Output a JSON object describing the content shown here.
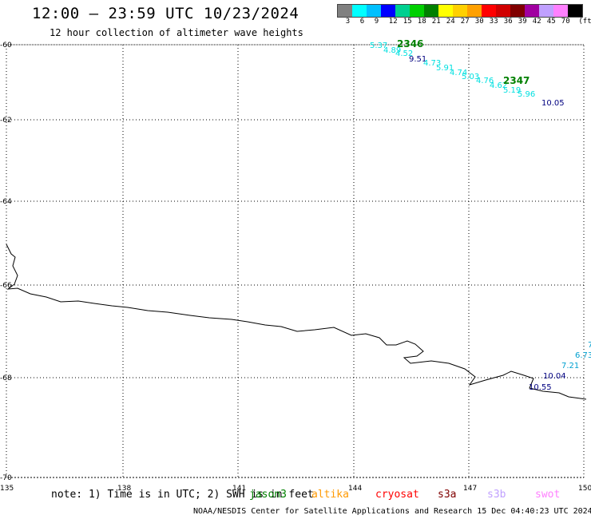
{
  "header": {
    "title": "12:00 – 23:59 UTC 10/23/2024",
    "subtitle": "12 hour collection of altimeter wave heights"
  },
  "legend": {
    "swatches": [
      "#808080",
      "#00ffff",
      "#00c0ff",
      "#0000ff",
      "#00d090",
      "#00d000",
      "#008000",
      "#ffff00",
      "#ffd000",
      "#ffa000",
      "#ff0000",
      "#d00000",
      "#800000",
      "#a000a0",
      "#c0a0ff",
      "#ff80ff",
      "#000000"
    ],
    "labels": [
      "3",
      "6",
      "9",
      "12",
      "15",
      "18",
      "21",
      "24",
      "27",
      "30",
      "33",
      "36",
      "39",
      "42",
      "45",
      "70",
      "(ft)"
    ]
  },
  "map": {
    "lat_ticks": [
      "-60",
      "-62",
      "-64",
      "-66",
      "-68",
      "-70"
    ],
    "lon_ticks": [
      "135",
      "138",
      "141",
      "144",
      "147",
      "150"
    ],
    "lon_range": [
      135,
      150
    ],
    "lat_range": [
      -70,
      -60
    ],
    "grid": "dotted"
  },
  "wave_labels": [
    {
      "text": "5.37",
      "color": "#00e0e0"
    },
    {
      "text": "2346",
      "color": "#008000"
    },
    {
      "text": "4.89",
      "color": "#00e0e0"
    },
    {
      "text": "4.52",
      "color": "#00e0e0"
    },
    {
      "text": "9.51",
      "color": "#000080"
    },
    {
      "text": "4.73",
      "color": "#00e0e0"
    },
    {
      "text": "5.91",
      "color": "#00e0e0"
    },
    {
      "text": "4.74",
      "color": "#00e0e0"
    },
    {
      "text": "5.03",
      "color": "#00e0e0"
    },
    {
      "text": "4.76",
      "color": "#00e0e0"
    },
    {
      "text": "4.62",
      "color": "#00e0e0"
    },
    {
      "text": "2347",
      "color": "#008000"
    },
    {
      "text": "5.19",
      "color": "#00e0e0"
    },
    {
      "text": "5.96",
      "color": "#00e0e0"
    },
    {
      "text": "10.05",
      "color": "#000080"
    },
    {
      "text": "7",
      "color": "#00a0d0"
    },
    {
      "text": "6.73",
      "color": "#00a0d0"
    },
    {
      "text": "7.21",
      "color": "#00a0d0"
    },
    {
      "text": "10.04",
      "color": "#000080"
    },
    {
      "text": "10.55",
      "color": "#000080"
    }
  ],
  "footer_note": {
    "text": "note: 1) Time is in UTC; 2) SWH is in feet",
    "satellites": [
      {
        "name": "jason3",
        "color": "#008000"
      },
      {
        "name": "altika",
        "color": "#ff9900"
      },
      {
        "name": "cryosat",
        "color": "#ff0000"
      },
      {
        "name": "s3a",
        "color": "#800000"
      },
      {
        "name": "s3b",
        "color": "#c0a0ff"
      },
      {
        "name": "swot",
        "color": "#ff80ff"
      }
    ]
  },
  "credit": "NOAA/NESDIS Center for Satellite Applications and Research   15 Dec 04:40:23 UTC 2024"
}
